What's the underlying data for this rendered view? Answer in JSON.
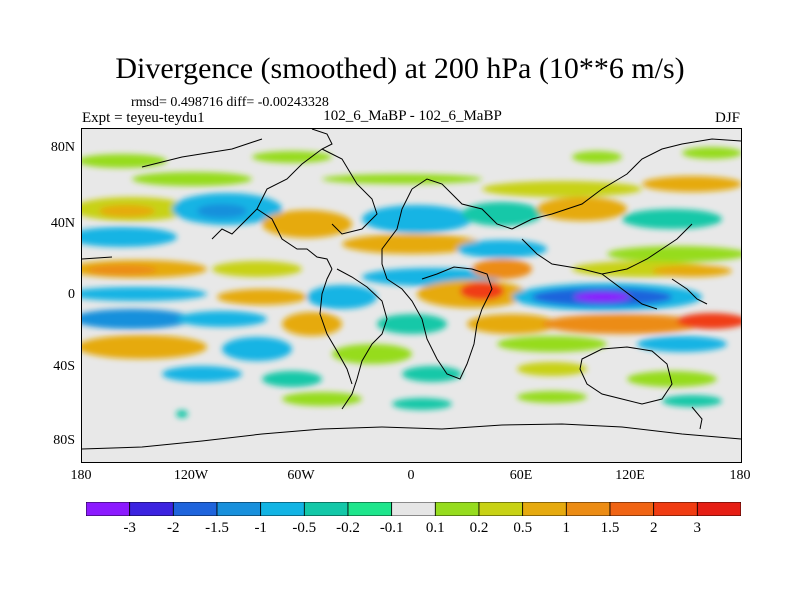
{
  "title": "Divergence (smoothed) at 200 hPa (10**6 m/s)",
  "stats": "rmsd= 0.498716 diff= -0.00243328",
  "experiment": "Expt = teyeu-teydu1",
  "runs": "102_6_MaBP - 102_6_MaBP",
  "season": "DJF",
  "map": {
    "lat_labels": [
      "80N",
      "40N",
      "0",
      "40S",
      "80S"
    ],
    "lon_labels": [
      "180",
      "120W",
      "60W",
      "0",
      "60E",
      "120E",
      "180"
    ]
  },
  "colorbar": {
    "labels": [
      "-3",
      "-2",
      "-1.5",
      "-1",
      "-0.5",
      "-0.2",
      "-0.1",
      "0.1",
      "0.2",
      "0.5",
      "1",
      "1.5",
      "2",
      "3"
    ],
    "colors": [
      "#8c1aff",
      "#3c23e0",
      "#1f64dc",
      "#1890dc",
      "#12b4e4",
      "#13c8a8",
      "#1ee68c",
      "#e6e6e6",
      "#96dc1e",
      "#c8d214",
      "#e6aa0f",
      "#ec8c14",
      "#f06414",
      "#f03c12",
      "#e61e14"
    ]
  },
  "legend_colors": {
    "land_outline": "#000000",
    "neutral": "#e6e6e6"
  }
}
